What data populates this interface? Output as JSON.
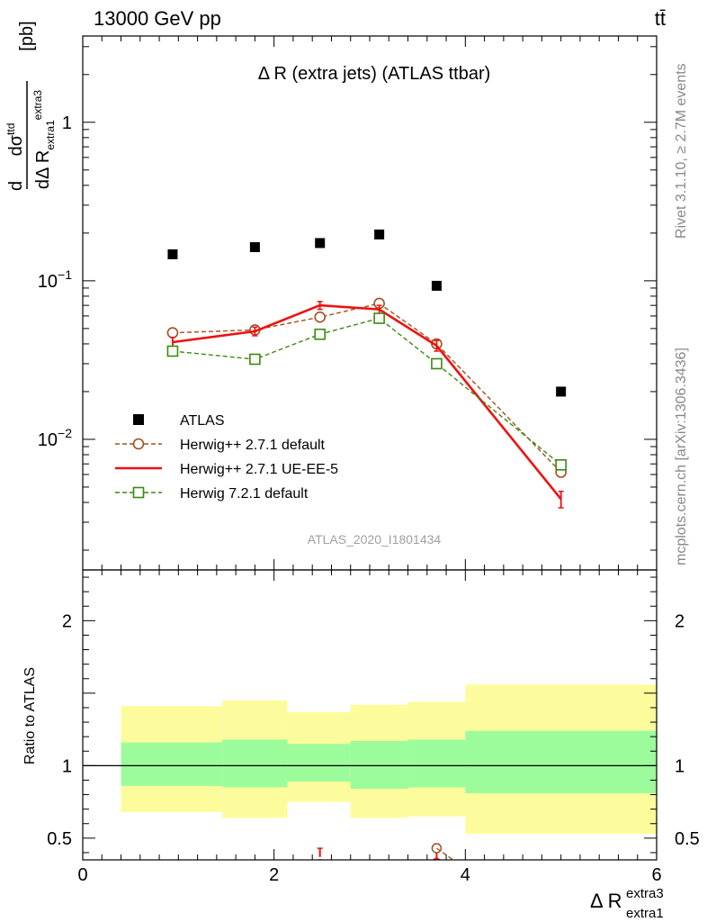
{
  "header": {
    "energy_label": "13000 GeV pp",
    "process_label": "tt̄"
  },
  "side_labels": {
    "rivet": "Rivet 3.1.10, ≥ 2.7M events",
    "mcplots": "mcplots.cern.ch [arXiv:1306.3436]"
  },
  "chart_data": [
    {
      "type": "scatter",
      "title": "Δ R (extra jets) (ATLAS ttbar)",
      "analysis_tag": "ATLAS_2020_I1801434",
      "ylabel": "dσ^ttd / dΔ R_extra1^extra3 [pb]",
      "yscale": "log",
      "xlim": [
        0,
        6
      ],
      "ylim": [
        0.0015,
        3.5
      ],
      "x_ticks": [
        0,
        2,
        4,
        6
      ],
      "y_ticks": [
        {
          "value": 0.01,
          "label": "10−2"
        },
        {
          "value": 0.1,
          "label": "10−1"
        },
        {
          "value": 1,
          "label": "1"
        }
      ],
      "legend_position": "bottom-left",
      "series": [
        {
          "name": "ATLAS",
          "color": "#000000",
          "style": "data",
          "x": [
            0.94,
            1.8,
            2.48,
            3.1,
            3.7,
            5.0
          ],
          "y": [
            0.147,
            0.163,
            0.173,
            0.196,
            0.093,
            0.02
          ]
        },
        {
          "name": "Herwig++ 2.7.1 default",
          "color": "#a0501e",
          "style": "dashed-circle",
          "x": [
            0.94,
            1.8,
            2.48,
            3.1,
            3.7,
            5.0
          ],
          "y": [
            0.047,
            0.049,
            0.059,
            0.072,
            0.04,
            0.0062
          ],
          "err": [
            0.002,
            0.002,
            0.002,
            0.003,
            0.002,
            0.0004
          ]
        },
        {
          "name": "Herwig++ 2.7.1 UE-EE-5",
          "color": "#ee1111",
          "style": "solid",
          "x": [
            0.94,
            1.8,
            2.48,
            3.1,
            3.7,
            5.0
          ],
          "y": [
            0.041,
            0.048,
            0.07,
            0.066,
            0.039,
            0.0042
          ],
          "err": [
            0.003,
            0.003,
            0.004,
            0.004,
            0.003,
            0.0005
          ]
        },
        {
          "name": "Herwig 7.2.1 default",
          "color": "#3a8a10",
          "style": "dashed-square",
          "x": [
            0.94,
            1.8,
            2.48,
            3.1,
            3.7,
            5.0
          ],
          "y": [
            0.036,
            0.032,
            0.046,
            0.058,
            0.03,
            0.0069
          ],
          "err": [
            0.001,
            0.002,
            0.002,
            0.002,
            0.002,
            0.0004
          ]
        }
      ]
    },
    {
      "type": "area",
      "xlabel": "Δ R_extra1^extra3",
      "ylabel": "Ratio to ATLAS",
      "xlim": [
        0,
        6
      ],
      "ylim": [
        0.35,
        2.35
      ],
      "x_ticks": [
        0,
        2,
        4,
        6
      ],
      "y_ticks": [
        0.5,
        1,
        2
      ],
      "reference_line": 1,
      "bins": [
        {
          "x0": 0.4,
          "x1": 1.46,
          "inner": [
            0.86,
            1.16
          ],
          "outer": [
            0.68,
            1.41
          ]
        },
        {
          "x0": 1.46,
          "x1": 2.14,
          "inner": [
            0.85,
            1.18
          ],
          "outer": [
            0.64,
            1.45
          ]
        },
        {
          "x0": 2.14,
          "x1": 2.8,
          "inner": [
            0.89,
            1.15
          ],
          "outer": [
            0.75,
            1.37
          ]
        },
        {
          "x0": 2.8,
          "x1": 3.4,
          "inner": [
            0.84,
            1.17
          ],
          "outer": [
            0.64,
            1.42
          ]
        },
        {
          "x0": 3.4,
          "x1": 4.0,
          "inner": [
            0.85,
            1.18
          ],
          "outer": [
            0.65,
            1.44
          ]
        },
        {
          "x0": 4.0,
          "x1": 6.0,
          "inner": [
            0.81,
            1.24
          ],
          "outer": [
            0.53,
            1.56
          ]
        }
      ],
      "band_colors": {
        "inner": "#9cfc9c",
        "outer": "#fcfc9c"
      },
      "visible_ratios": [
        {
          "series": "Herwig++ 2.7.1 UE-EE-5",
          "color": "#ee1111",
          "x": 3.7,
          "y": 0.41,
          "err": 0.05
        },
        {
          "series": "Herwig++ 2.7.1 default",
          "color": "#a0501e",
          "x": 3.7,
          "y": 0.43,
          "err": 0.02
        },
        {
          "series": "Herwig++ 2.7.1 UE-EE-5",
          "color": "#ee1111",
          "x": 2.48,
          "y": 0.4,
          "err": 0.03
        }
      ]
    }
  ]
}
